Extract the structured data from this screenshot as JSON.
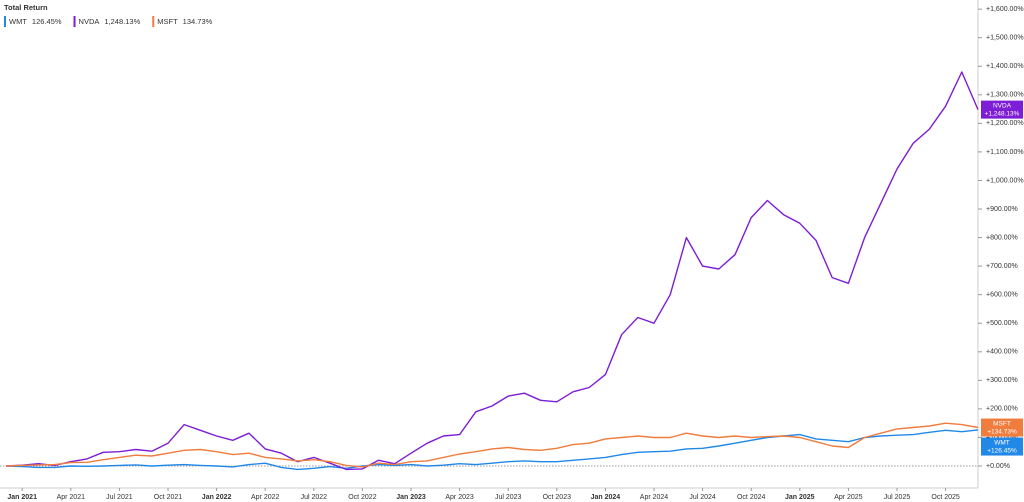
{
  "chart_data": {
    "type": "line",
    "title": "Total Return",
    "x": [
      null,
      "Jan 2021",
      null,
      null,
      "Apr 2021",
      null,
      null,
      "Jul 2021",
      null,
      null,
      "Oct 2021",
      null,
      null,
      "Jan 2022",
      null,
      null,
      "Apr 2022",
      null,
      null,
      "Jul 2022",
      null,
      null,
      "Oct 2022",
      null,
      null,
      "Jan 2023",
      null,
      null,
      "Apr 2023",
      null,
      null,
      "Jul 2023",
      null,
      null,
      "Oct 2023",
      null,
      null,
      "Jan 2024",
      null,
      null,
      "Apr 2024",
      null,
      null,
      "Jul 2024",
      null,
      null,
      "Oct 2024",
      null,
      null,
      "Jan 2025",
      null,
      null,
      "Apr 2025",
      null,
      null,
      "Jul 2025",
      null,
      null,
      "Oct 2025",
      null,
      null
    ],
    "series": [
      {
        "name": "WMT",
        "color": "#2188e8",
        "legend_label": "126.45%",
        "end_label": "+126.45%",
        "values": [
          0,
          -2,
          -5,
          -5,
          0,
          -1,
          0,
          2,
          4,
          0,
          3,
          5,
          2,
          0,
          -3,
          5,
          10,
          -5,
          -12,
          -8,
          -2,
          -8,
          0,
          5,
          2,
          5,
          0,
          3,
          8,
          5,
          10,
          15,
          18,
          15,
          15,
          20,
          25,
          30,
          40,
          48,
          50,
          52,
          60,
          62,
          70,
          80,
          90,
          100,
          105,
          110,
          95,
          90,
          85,
          100,
          105,
          108,
          110,
          118,
          125,
          120,
          126.45
        ]
      },
      {
        "name": "NVDA",
        "color": "#7d1dd6",
        "legend_label": "1,248.13%",
        "end_label": "+1,248.13%",
        "values": [
          0,
          3,
          8,
          2,
          15,
          25,
          48,
          50,
          58,
          52,
          80,
          145,
          125,
          105,
          90,
          115,
          60,
          45,
          15,
          30,
          10,
          -12,
          -10,
          20,
          8,
          45,
          80,
          105,
          110,
          190,
          210,
          245,
          255,
          230,
          225,
          260,
          275,
          320,
          460,
          520,
          500,
          600,
          800,
          700,
          690,
          740,
          870,
          930,
          880,
          850,
          790,
          660,
          640,
          800,
          920,
          1040,
          1130,
          1180,
          1260,
          1380,
          1248.13
        ]
      },
      {
        "name": "MSFT",
        "color": "#f07c3e",
        "legend_label": "134.73%",
        "end_label": "+134.73%",
        "values": [
          0,
          2,
          4,
          5,
          12,
          13,
          22,
          30,
          38,
          35,
          45,
          55,
          58,
          50,
          40,
          45,
          30,
          25,
          18,
          22,
          15,
          2,
          -3,
          10,
          5,
          15,
          18,
          30,
          42,
          50,
          60,
          65,
          58,
          55,
          62,
          75,
          80,
          95,
          100,
          105,
          100,
          100,
          115,
          105,
          100,
          105,
          100,
          103,
          105,
          100,
          85,
          70,
          65,
          100,
          115,
          130,
          135,
          140,
          150,
          145,
          134.73
        ]
      }
    ],
    "ylim": [
      -77,
      1632
    ],
    "yticks": [
      {
        "value": 0,
        "label": "+0.00%"
      },
      {
        "value": 100,
        "label": "+100.00%"
      },
      {
        "value": 200,
        "label": "+200.00%"
      },
      {
        "value": 300,
        "label": "+300.00%"
      },
      {
        "value": 400,
        "label": "+400.00%"
      },
      {
        "value": 500,
        "label": "+500.00%"
      },
      {
        "value": 600,
        "label": "+600.00%"
      },
      {
        "value": 700,
        "label": "+700.00%"
      },
      {
        "value": 800,
        "label": "+800.00%"
      },
      {
        "value": 900,
        "label": "+900.00%"
      },
      {
        "value": 1000,
        "label": "+1,000.00%"
      },
      {
        "value": 1100,
        "label": "+1,100.00%"
      },
      {
        "value": 1200,
        "label": "+1,200.00%"
      },
      {
        "value": 1300,
        "label": "+1,300.00%"
      },
      {
        "value": 1400,
        "label": "+1,400.00%"
      },
      {
        "value": 1500,
        "label": "+1,500.00%"
      },
      {
        "value": 1600,
        "label": "+1,600.00%"
      }
    ],
    "grid": false
  }
}
